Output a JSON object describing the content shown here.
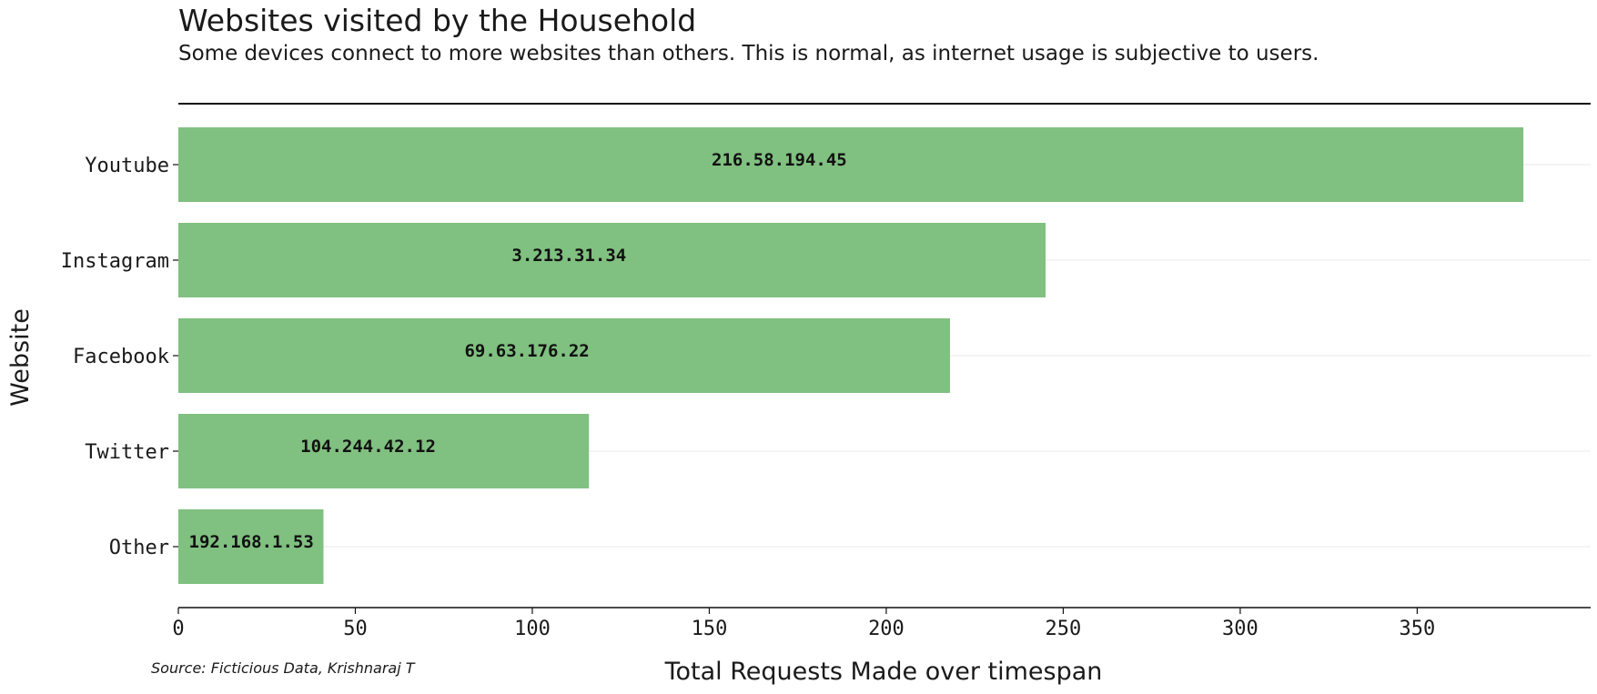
{
  "chart_data": {
    "type": "bar",
    "orientation": "horizontal",
    "title": "Websites visited by the Household",
    "subtitle": "Some devices connect to more websites than others. This is normal, as internet usage is subjective to users.",
    "xlabel": "Total Requests Made over timespan",
    "ylabel": "Website",
    "source": "Source: Ficticious Data, Krishnaraj T",
    "categories": [
      "Youtube",
      "Instagram",
      "Facebook",
      "Twitter",
      "Other"
    ],
    "values": [
      380,
      245,
      218,
      116,
      41
    ],
    "bar_labels": [
      "216.58.194.45",
      "3.213.31.34",
      "69.63.176.22",
      "104.244.42.12",
      "192.168.1.53"
    ],
    "xticks": [
      0,
      50,
      100,
      150,
      200,
      250,
      300,
      350
    ],
    "xlim": [
      0,
      399
    ],
    "grid": "horizontal",
    "bar_color": "#80c080",
    "grid_color": "#e8e8e8"
  }
}
